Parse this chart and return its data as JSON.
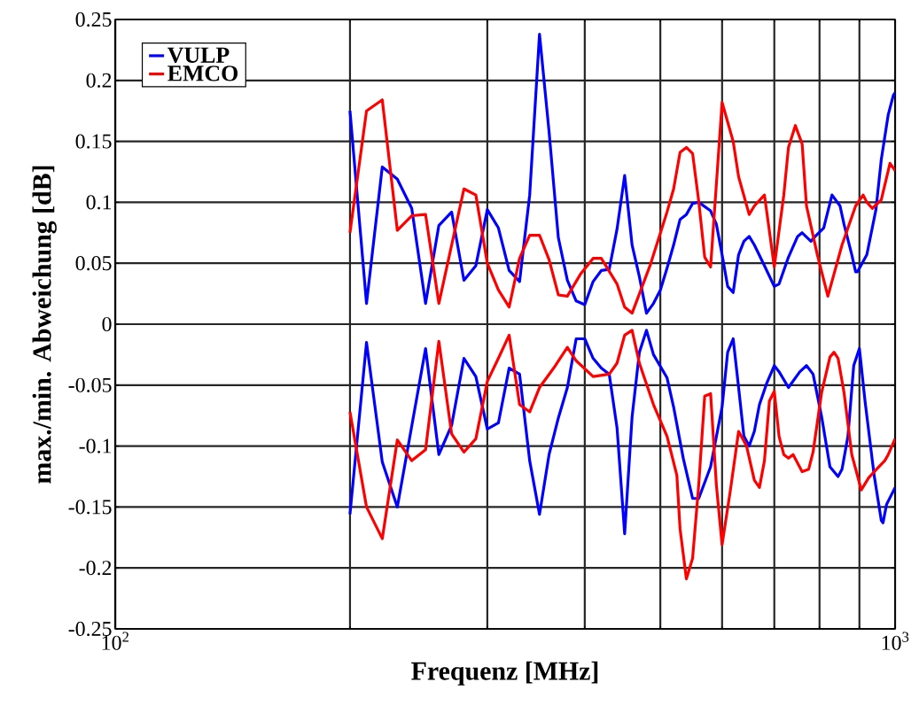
{
  "chart_data": {
    "type": "line",
    "xlabel": "Frequenz [MHz]",
    "ylabel": "max./min. Abweichung [dB]",
    "log": "x",
    "grid": true,
    "legend": "top left",
    "marker": "none",
    "line_style": "solid",
    "xlim": [
      100,
      1000
    ],
    "xticks": [
      {
        "value": 100,
        "label": "10$^{2}$"
      },
      {
        "value": 1000,
        "label": "10$^{3}$"
      }
    ],
    "ylim": [
      -0.25,
      0.25
    ],
    "yticks": [
      -0.25,
      -0.2,
      -0.15,
      -0.1,
      -0.05,
      0,
      0.05,
      0.1,
      0.15,
      0.2,
      0.25
    ],
    "series": [
      {
        "name": "VULP",
        "color": "#0000ff",
        "x": [
          200,
          210,
          220,
          230,
          240,
          250,
          260,
          270,
          280,
          290,
          300,
          310,
          320,
          330,
          340,
          350,
          360,
          370,
          380,
          390,
          400,
          410,
          420,
          430,
          440,
          450,
          460,
          470,
          480,
          490,
          500,
          510,
          520,
          530,
          540,
          550,
          560,
          580,
          590,
          600,
          610,
          620,
          630,
          640,
          650,
          660,
          680,
          700,
          710,
          730,
          750,
          760,
          780,
          790,
          810,
          830,
          850,
          860,
          880,
          890,
          895,
          920,
          945,
          960,
          980,
          995,
          1000
        ],
        "values": [
          0.175,
          0.017,
          0.129,
          0.119,
          0.095,
          0.017,
          0.081,
          0.092,
          0.036,
          0.048,
          0.094,
          0.079,
          0.044,
          0.035,
          0.106,
          0.238,
          0.158,
          0.071,
          0.036,
          0.019,
          0.016,
          0.035,
          0.044,
          0.045,
          0.078,
          0.122,
          0.065,
          0.039,
          0.009,
          0.017,
          0.028,
          0.046,
          0.065,
          0.086,
          0.09,
          0.099,
          0.1,
          0.093,
          0.082,
          0.057,
          0.031,
          0.026,
          0.057,
          0.068,
          0.072,
          0.065,
          0.048,
          0.031,
          0.033,
          0.055,
          0.072,
          0.075,
          0.068,
          0.072,
          0.079,
          0.106,
          0.097,
          0.082,
          0.057,
          0.043,
          0.043,
          0.057,
          0.094,
          0.135,
          0.172,
          0.188,
          0.19
        ]
      },
      {
        "color": "#0000ff",
        "x": [
          200,
          210,
          220,
          230,
          250,
          260,
          270,
          280,
          290,
          300,
          310,
          320,
          330,
          340,
          350,
          360,
          370,
          380,
          390,
          400,
          410,
          420,
          430,
          440,
          450,
          460,
          470,
          480,
          490,
          510,
          520,
          535,
          550,
          560,
          580,
          600,
          610,
          620,
          630,
          640,
          650,
          660,
          670,
          685,
          700,
          710,
          730,
          755,
          770,
          785,
          805,
          825,
          845,
          855,
          870,
          885,
          900,
          915,
          940,
          960,
          965,
          975,
          1000
        ],
        "values": [
          -0.156,
          -0.015,
          -0.113,
          -0.15,
          -0.02,
          -0.107,
          -0.083,
          -0.028,
          -0.043,
          -0.086,
          -0.081,
          -0.036,
          -0.041,
          -0.112,
          -0.156,
          -0.107,
          -0.077,
          -0.052,
          -0.012,
          -0.012,
          -0.028,
          -0.036,
          -0.041,
          -0.085,
          -0.172,
          -0.076,
          -0.023,
          -0.005,
          -0.025,
          -0.044,
          -0.068,
          -0.11,
          -0.143,
          -0.143,
          -0.117,
          -0.068,
          -0.023,
          -0.012,
          -0.052,
          -0.092,
          -0.1,
          -0.088,
          -0.066,
          -0.048,
          -0.034,
          -0.039,
          -0.052,
          -0.039,
          -0.034,
          -0.041,
          -0.076,
          -0.117,
          -0.125,
          -0.119,
          -0.092,
          -0.034,
          -0.02,
          -0.063,
          -0.124,
          -0.161,
          -0.163,
          -0.148,
          -0.134
        ]
      },
      {
        "name": "EMCO",
        "color": "#ff0000",
        "x": [
          200,
          210,
          220,
          230,
          240,
          250,
          260,
          280,
          290,
          300,
          310,
          320,
          330,
          340,
          350,
          360,
          370,
          380,
          395,
          410,
          420,
          440,
          450,
          460,
          485,
          510,
          520,
          530,
          540,
          550,
          560,
          570,
          580,
          600,
          620,
          630,
          650,
          660,
          680,
          700,
          720,
          730,
          745,
          760,
          770,
          795,
          820,
          855,
          890,
          910,
          920,
          935,
          960,
          985,
          1000
        ],
        "values": [
          0.075,
          0.175,
          0.184,
          0.077,
          0.089,
          0.09,
          0.017,
          0.111,
          0.106,
          0.05,
          0.028,
          0.014,
          0.054,
          0.073,
          0.073,
          0.053,
          0.024,
          0.023,
          0.041,
          0.054,
          0.054,
          0.033,
          0.014,
          0.009,
          0.048,
          0.092,
          0.111,
          0.141,
          0.145,
          0.14,
          0.101,
          0.055,
          0.047,
          0.182,
          0.15,
          0.121,
          0.09,
          0.097,
          0.106,
          0.047,
          0.106,
          0.145,
          0.163,
          0.148,
          0.097,
          0.057,
          0.023,
          0.065,
          0.097,
          0.106,
          0.1,
          0.095,
          0.102,
          0.132,
          0.126
        ]
      },
      {
        "color": "#ff0000",
        "x": [
          200,
          210,
          220,
          230,
          240,
          250,
          260,
          270,
          280,
          290,
          300,
          310,
          320,
          330,
          340,
          350,
          365,
          380,
          390,
          410,
          430,
          440,
          450,
          460,
          470,
          490,
          510,
          525,
          530,
          540,
          550,
          560,
          570,
          580,
          590,
          600,
          615,
          630,
          645,
          660,
          670,
          680,
          690,
          700,
          710,
          720,
          730,
          740,
          760,
          775,
          785,
          805,
          825,
          835,
          845,
          860,
          880,
          905,
          925,
          950,
          970,
          980,
          1000
        ],
        "values": [
          -0.072,
          -0.15,
          -0.176,
          -0.095,
          -0.112,
          -0.103,
          -0.014,
          -0.09,
          -0.105,
          -0.094,
          -0.047,
          -0.028,
          -0.009,
          -0.066,
          -0.072,
          -0.052,
          -0.036,
          -0.019,
          -0.03,
          -0.043,
          -0.041,
          -0.032,
          -0.009,
          -0.005,
          -0.032,
          -0.066,
          -0.092,
          -0.124,
          -0.168,
          -0.209,
          -0.192,
          -0.132,
          -0.059,
          -0.057,
          -0.132,
          -0.181,
          -0.136,
          -0.088,
          -0.1,
          -0.128,
          -0.134,
          -0.112,
          -0.063,
          -0.055,
          -0.092,
          -0.107,
          -0.11,
          -0.107,
          -0.121,
          -0.119,
          -0.105,
          -0.056,
          -0.027,
          -0.023,
          -0.028,
          -0.056,
          -0.107,
          -0.136,
          -0.126,
          -0.118,
          -0.112,
          -0.107,
          -0.094
        ]
      }
    ]
  }
}
